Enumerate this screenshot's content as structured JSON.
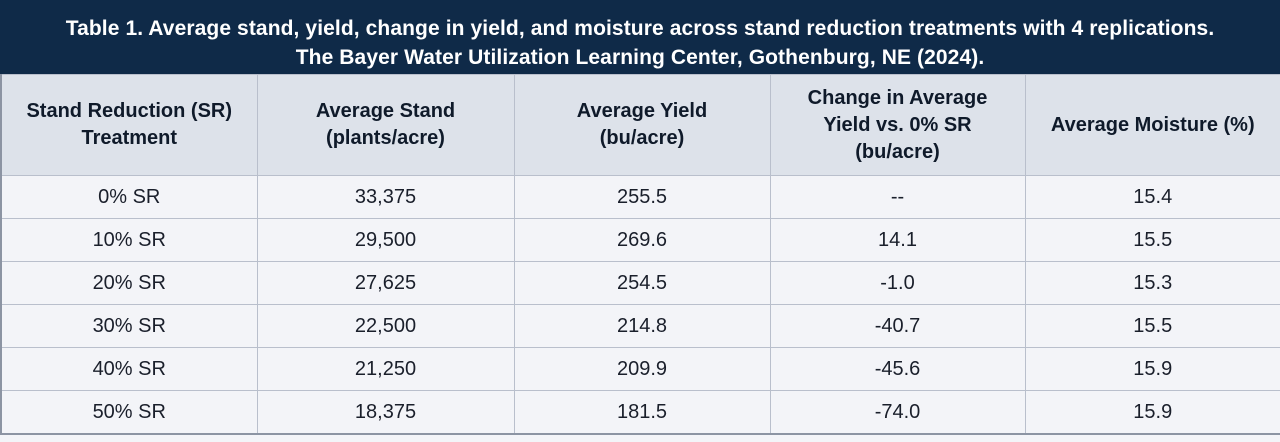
{
  "title": {
    "line1": "Table 1. Average stand, yield, change in yield, and moisture across stand reduction treatments with 4 replications.",
    "line2": "The Bayer Water Utilization Learning Center, Gothenburg, NE (2024)."
  },
  "table": {
    "headers": [
      [
        "Stand Reduction (SR)",
        "Treatment"
      ],
      [
        "Average Stand",
        "(plants/acre)"
      ],
      [
        "Average Yield",
        "(bu/acre)"
      ],
      [
        "Change in Average",
        "Yield vs. 0% SR",
        "(bu/acre)"
      ],
      [
        "Average Moisture (%)"
      ]
    ],
    "rows": [
      [
        "0% SR",
        "33,375",
        "255.5",
        "--",
        "15.4"
      ],
      [
        "10% SR",
        "29,500",
        "269.6",
        "14.1",
        "15.5"
      ],
      [
        "20% SR",
        "27,625",
        "254.5",
        "-1.0",
        "15.3"
      ],
      [
        "30% SR",
        "22,500",
        "214.8",
        "-40.7",
        "15.5"
      ],
      [
        "40% SR",
        "21,250",
        "209.9",
        "-45.6",
        "15.9"
      ],
      [
        "50% SR",
        "18,375",
        "181.5",
        "-74.0",
        "15.9"
      ]
    ]
  },
  "colors": {
    "title_background": "#0f2a48",
    "header_background": "#dde2ea",
    "body_background": "#f3f4f8",
    "grid_line": "#b9bfcc"
  }
}
